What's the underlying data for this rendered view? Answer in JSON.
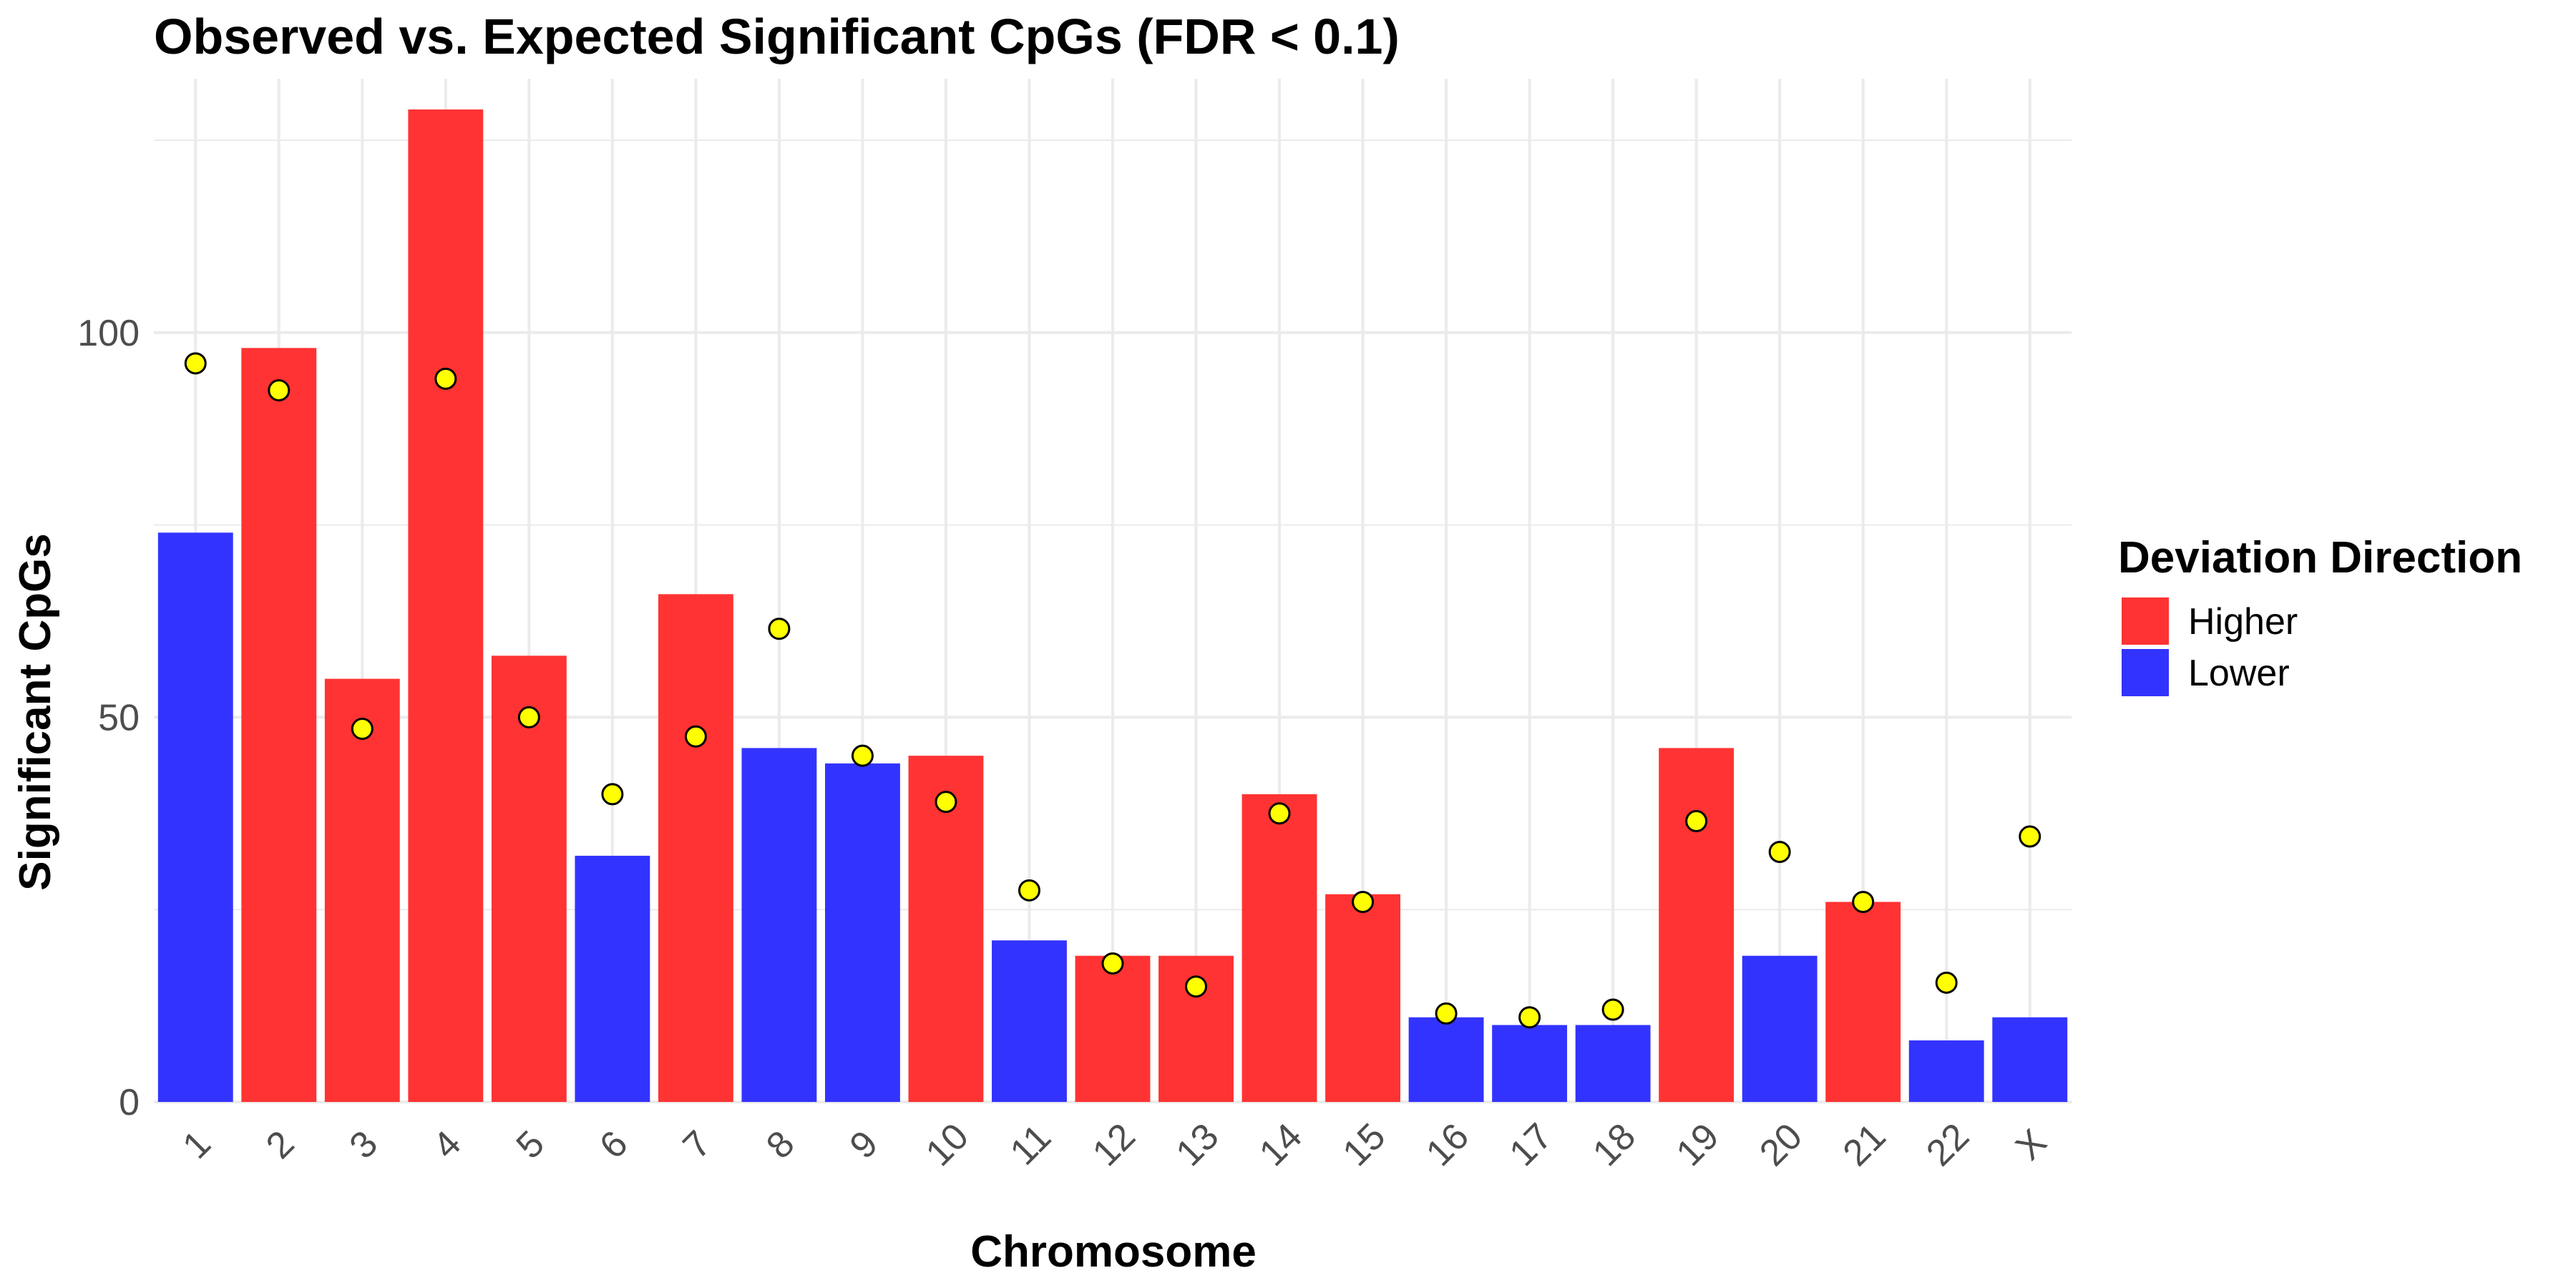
{
  "chart_data": {
    "type": "bar",
    "title": "Observed vs. Expected Significant CpGs (FDR < 0.1)",
    "xlabel": "Chromosome",
    "ylabel": "Significant CpGs",
    "categories": [
      "1",
      "2",
      "3",
      "4",
      "5",
      "6",
      "7",
      "8",
      "9",
      "10",
      "11",
      "12",
      "13",
      "14",
      "15",
      "16",
      "17",
      "18",
      "19",
      "20",
      "21",
      "22",
      "X"
    ],
    "yticks": [
      0,
      50,
      100
    ],
    "ylim": [
      0,
      133
    ],
    "grid": true,
    "series": [
      {
        "name": "Observed",
        "kind": "bar",
        "values": [
          74,
          98,
          55,
          129,
          58,
          32,
          66,
          46,
          44,
          45,
          21,
          19,
          19,
          40,
          27,
          11,
          10,
          10,
          46,
          19,
          26,
          8,
          11
        ],
        "direction": [
          "Lower",
          "Higher",
          "Higher",
          "Higher",
          "Higher",
          "Lower",
          "Higher",
          "Lower",
          "Lower",
          "Higher",
          "Lower",
          "Higher",
          "Higher",
          "Higher",
          "Higher",
          "Lower",
          "Lower",
          "Lower",
          "Higher",
          "Lower",
          "Higher",
          "Lower",
          "Lower"
        ]
      },
      {
        "name": "Expected",
        "kind": "point",
        "values": [
          96,
          92.5,
          48.5,
          94,
          50,
          40,
          47.5,
          61.5,
          45,
          39,
          27.5,
          18,
          15,
          37.5,
          26,
          11.5,
          11,
          12,
          36.5,
          32.5,
          26,
          15.5,
          34.5
        ]
      }
    ],
    "legend": {
      "title": "Deviation Direction",
      "position": "right",
      "items": [
        {
          "key": "Higher",
          "label": "Higher",
          "color": "#FF3333"
        },
        {
          "key": "Lower",
          "label": "Lower",
          "color": "#3333FF"
        }
      ]
    },
    "point_color": "#FFFF00",
    "point_stroke": "#000000",
    "grid_color": "#EBEBEB"
  }
}
